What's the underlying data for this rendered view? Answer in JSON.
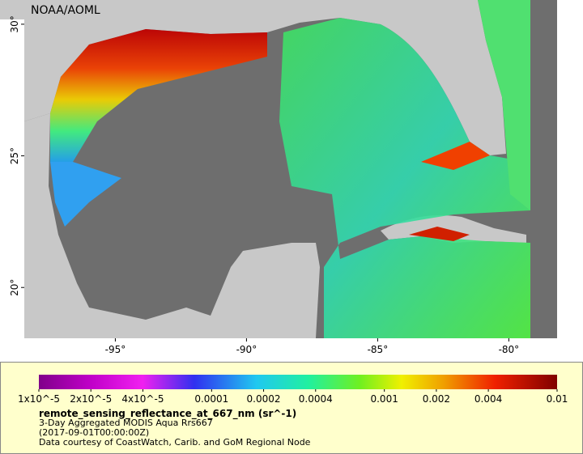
{
  "map": {
    "credit": "NOAA/AOML",
    "xaxis": {
      "lim": [
        -98.47,
        -78.16
      ],
      "ticks": [
        {
          "value": -95,
          "label": "-95°"
        },
        {
          "value": -90,
          "label": "-90°"
        },
        {
          "value": -85,
          "label": "-85°"
        },
        {
          "value": -80,
          "label": "-80°"
        }
      ]
    },
    "yaxis": {
      "lim": [
        18.07,
        30.92
      ],
      "ticks": [
        {
          "value": 30,
          "label": "30°"
        },
        {
          "value": 25,
          "label": "25°"
        },
        {
          "value": 20,
          "label": "20°"
        }
      ]
    }
  },
  "colorbar": {
    "scale": "log",
    "lim": [
      1e-05,
      0.01
    ],
    "ticks": [
      {
        "value": 1e-05,
        "label": "1x10^-5"
      },
      {
        "value": 2e-05,
        "label": "2x10^-5"
      },
      {
        "value": 4e-05,
        "label": "4x10^-5"
      },
      0.0001,
      0.0002,
      0.0004,
      0.001,
      0.002,
      0.004,
      0.01
    ]
  },
  "legend": {
    "variable": "remote_sensing_reflectance_at_667_nm (sr^-1)",
    "lines": [
      "3-Day Aggregated MODIS Aqua Rrs667",
      "(2017-09-01T00:00:00Z)",
      "Data courtesy of CoastWatch, Carib. and GoM Regional Node"
    ]
  }
}
